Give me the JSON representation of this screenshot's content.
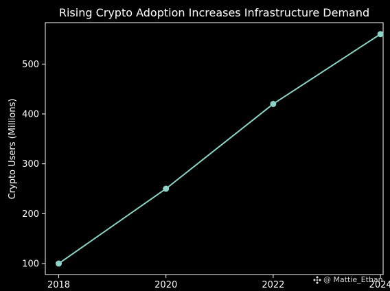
{
  "chart_data": {
    "type": "line",
    "title": "Rising Crypto Adoption Increases Infrastructure Demand",
    "xlabel": "",
    "ylabel": "Crypto Users (Millions)",
    "x": [
      2018,
      2020,
      2022,
      2024
    ],
    "x_ticks": [
      "2018",
      "2020",
      "2022",
      "2024"
    ],
    "y_ticks": [
      "100",
      "200",
      "300",
      "400",
      "500"
    ],
    "series": [
      {
        "values": [
          100,
          250,
          420,
          560
        ]
      }
    ],
    "xlim": [
      2017.75,
      2024.05
    ],
    "ylim": [
      78,
      583
    ],
    "grid": false,
    "colors": {
      "background": "#000000",
      "line": "#8dd3c7",
      "axes": "#ffffff",
      "text": "#ffffff"
    }
  },
  "watermark": {
    "text": "@ Mattie_Ethan",
    "icon": "binance-logo-icon"
  }
}
